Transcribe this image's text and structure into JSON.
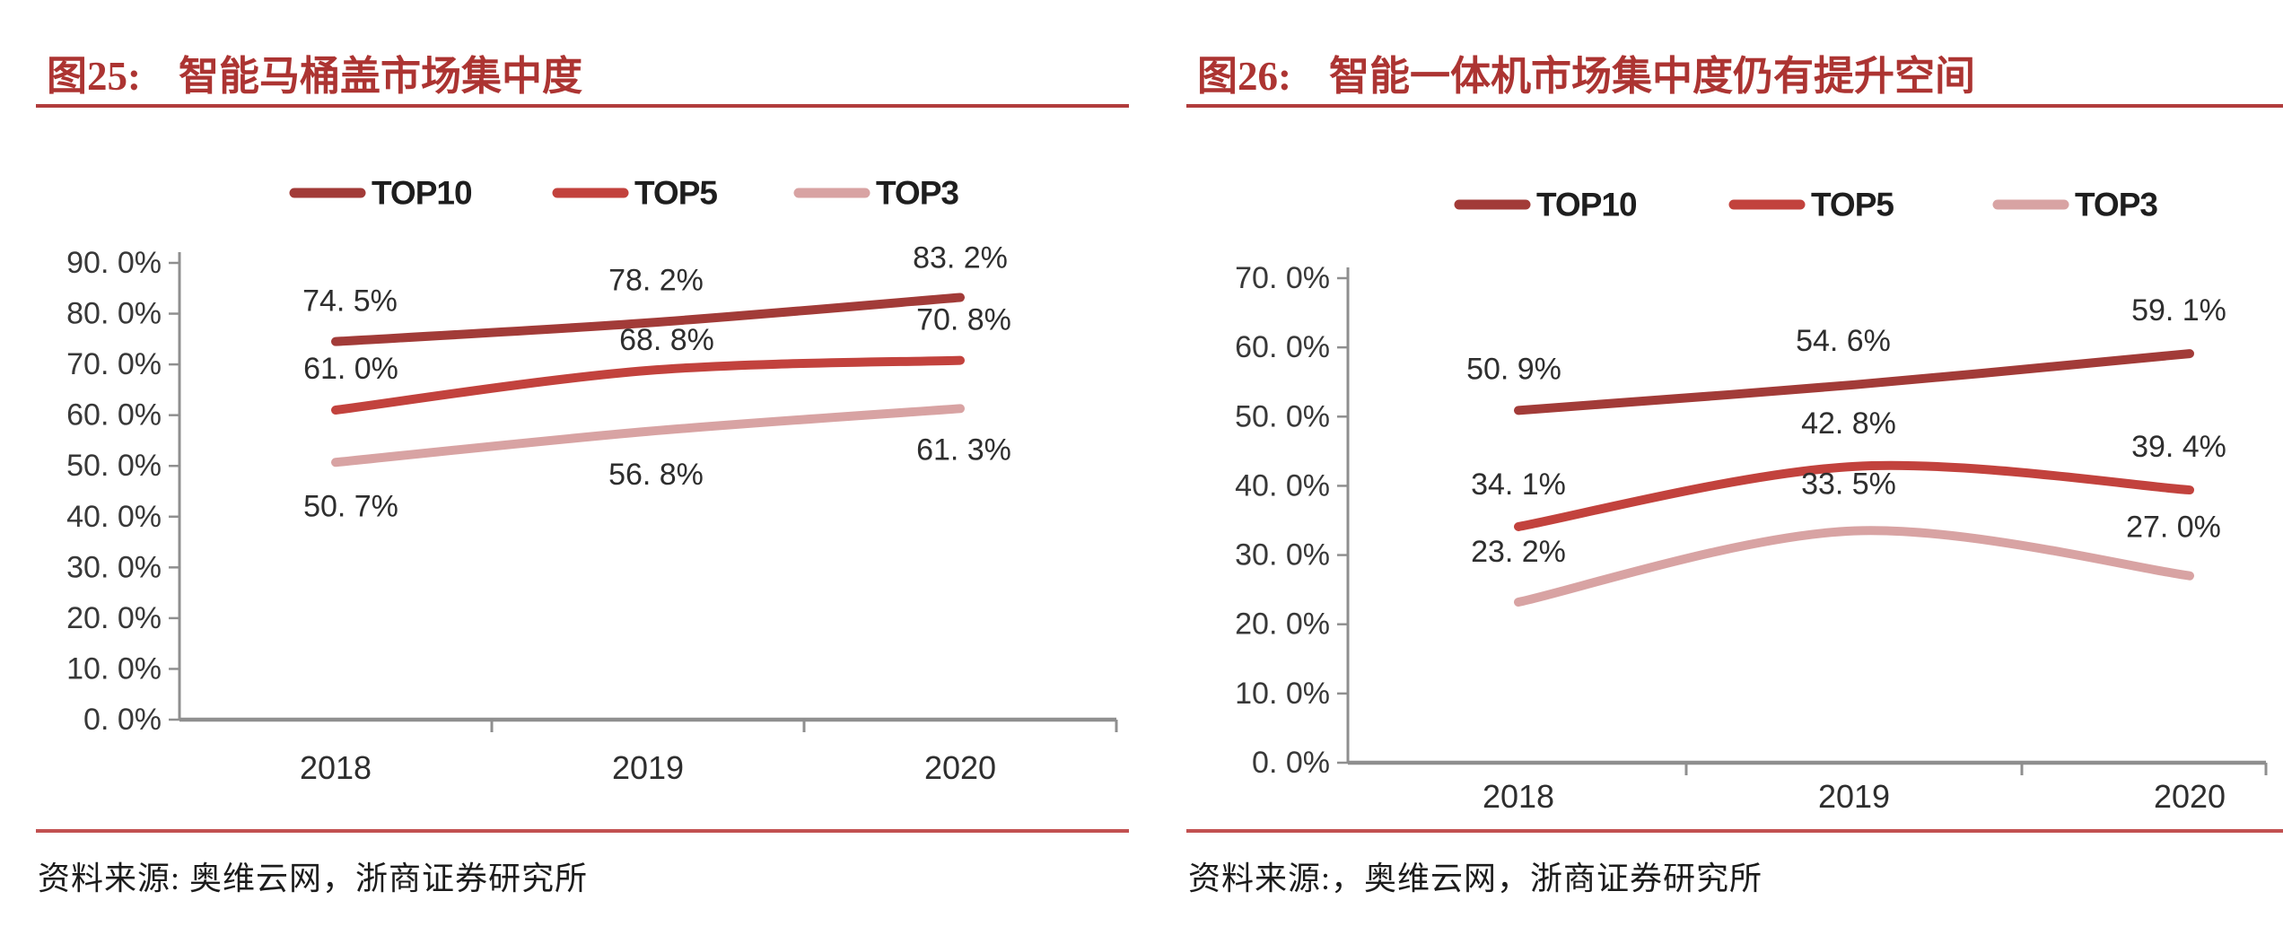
{
  "figures": [
    {
      "fig_label": "图25:",
      "title": "智能马桶盖市场集中度",
      "source": "资料来源: 奥维云网，浙商证券研究所"
    },
    {
      "fig_label": "图26:",
      "title": "智能一体机市场集中度仍有提升空间",
      "source": "资料来源:，奥维云网，浙商证券研究所"
    }
  ],
  "chart_data": [
    {
      "type": "line",
      "title": "智能马桶盖市场集中度",
      "categories": [
        "2018",
        "2019",
        "2020"
      ],
      "series": [
        {
          "name": "TOP10",
          "values": [
            74.5,
            78.2,
            83.2
          ],
          "labels": [
            "74. 5%",
            "78. 2%",
            "83. 2%"
          ],
          "color": "#A23B38"
        },
        {
          "name": "TOP5",
          "values": [
            61.0,
            68.8,
            70.8
          ],
          "labels": [
            "61. 0%",
            "68. 8%",
            "70. 8%"
          ],
          "color": "#C2423D"
        },
        {
          "name": "TOP3",
          "values": [
            50.7,
            56.8,
            61.3
          ],
          "labels": [
            "50. 7%",
            "56. 8%",
            "61. 3%"
          ],
          "color": "#D8A3A3"
        }
      ],
      "ylim": [
        0,
        90
      ],
      "ytick_step": 10,
      "ytick_labels": [
        "0. 0%",
        "10. 0%",
        "20. 0%",
        "30. 0%",
        "40. 0%",
        "50. 0%",
        "60. 0%",
        "70. 0%",
        "80. 0%",
        "90. 0%"
      ],
      "legend_position": "top",
      "grid": false,
      "label_offsets": [
        [
          [
            16,
            -45
          ],
          [
            9,
            -47
          ],
          [
            0,
            -44
          ]
        ],
        [
          [
            17,
            -46
          ],
          [
            21,
            -34
          ],
          [
            4,
            -45
          ]
        ],
        [
          [
            17,
            49
          ],
          [
            9,
            48
          ],
          [
            4,
            46
          ]
        ]
      ]
    },
    {
      "type": "line",
      "title": "智能一体机市场集中度仍有提升空间",
      "categories": [
        "2018",
        "2019",
        "2020"
      ],
      "series": [
        {
          "name": "TOP10",
          "values": [
            50.9,
            54.6,
            59.1
          ],
          "labels": [
            "50. 9%",
            "54. 6%",
            "59. 1%"
          ],
          "color": "#A23B38"
        },
        {
          "name": "TOP5",
          "values": [
            34.1,
            42.8,
            39.4
          ],
          "labels": [
            "34. 1%",
            "42. 8%",
            "39. 4%"
          ],
          "color": "#C2423D"
        },
        {
          "name": "TOP3",
          "values": [
            23.2,
            33.5,
            27.0
          ],
          "labels": [
            "23. 2%",
            "33. 5%",
            "27. 0%"
          ],
          "color": "#D8A3A3"
        }
      ],
      "ylim": [
        0,
        70
      ],
      "ytick_step": 10,
      "ytick_labels": [
        "0. 0%",
        "10. 0%",
        "20. 0%",
        "30. 0%",
        "40. 0%",
        "50. 0%",
        "60. 0%",
        "70. 0%"
      ],
      "legend_position": "top",
      "grid": false,
      "label_offsets": [
        [
          [
            -5,
            -46
          ],
          [
            -12,
            -49
          ],
          [
            -12,
            -48
          ]
        ],
        [
          [
            0,
            -47
          ],
          [
            -6,
            -48
          ],
          [
            -12,
            -48
          ]
        ],
        [
          [
            0,
            -56
          ],
          [
            -6,
            -52
          ],
          [
            -18,
            -54
          ]
        ]
      ]
    }
  ],
  "colors": {
    "title_red": "#AC3432",
    "rule_red": "#B13C3C",
    "separator_red": "#C25151",
    "axis_gray": "#8F8F8F"
  }
}
